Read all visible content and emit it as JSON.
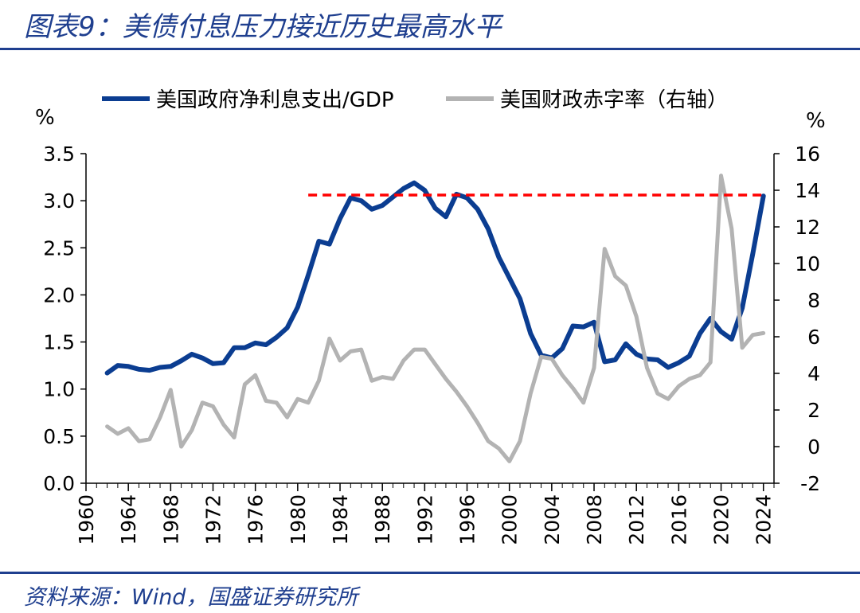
{
  "figure_title": "图表9：美债付息压力接近历史最高水平",
  "source": "资料来源：Wind，国盛证券研究所",
  "colors": {
    "title": "#1f3f8f",
    "interest": "#0b3d91",
    "deficit": "#b3b3b3",
    "reference": "#ff0000"
  },
  "chart_data": {
    "type": "line",
    "title": "",
    "xlabel": "",
    "y_left_unit": "%",
    "y_right_unit": "%",
    "xlim": [
      1960,
      2025
    ],
    "ylim_left": [
      0,
      3.5
    ],
    "ylim_right": [
      -2,
      16
    ],
    "x_ticks": [
      "1960",
      "1964",
      "1968",
      "1972",
      "1976",
      "1980",
      "1984",
      "1988",
      "1992",
      "1996",
      "2000",
      "2004",
      "2008",
      "2012",
      "2016",
      "2020",
      "2024"
    ],
    "y_left_ticks": [
      "0.0",
      "0.5",
      "1.0",
      "1.5",
      "2.0",
      "2.5",
      "3.0",
      "3.5"
    ],
    "y_right_ticks": [
      "-2",
      "0",
      "2",
      "4",
      "6",
      "8",
      "10",
      "12",
      "14",
      "16"
    ],
    "grid": false,
    "legend_position": "top",
    "reference_line": {
      "style": "dashed",
      "axis": "left",
      "y": 3.06,
      "x_start": 1981,
      "x_end": 2024
    },
    "series": [
      {
        "name": "美国政府净利息支出/GDP",
        "axis": "left",
        "x": [
          1962,
          1963,
          1964,
          1965,
          1966,
          1967,
          1968,
          1969,
          1970,
          1971,
          1972,
          1973,
          1974,
          1975,
          1976,
          1977,
          1978,
          1979,
          1980,
          1981,
          1982,
          1983,
          1984,
          1985,
          1986,
          1987,
          1988,
          1989,
          1990,
          1991,
          1992,
          1993,
          1994,
          1995,
          1996,
          1997,
          1998,
          1999,
          2000,
          2001,
          2002,
          2003,
          2004,
          2005,
          2006,
          2007,
          2008,
          2009,
          2010,
          2011,
          2012,
          2013,
          2014,
          2015,
          2016,
          2017,
          2018,
          2019,
          2020,
          2021,
          2022,
          2023,
          2024
        ],
        "values": [
          1.17,
          1.25,
          1.24,
          1.21,
          1.2,
          1.23,
          1.24,
          1.3,
          1.37,
          1.33,
          1.27,
          1.28,
          1.44,
          1.44,
          1.49,
          1.47,
          1.55,
          1.65,
          1.87,
          2.21,
          2.57,
          2.54,
          2.81,
          3.03,
          3.0,
          2.91,
          2.95,
          3.04,
          3.13,
          3.19,
          3.11,
          2.92,
          2.83,
          3.07,
          3.03,
          2.91,
          2.7,
          2.4,
          2.18,
          1.96,
          1.59,
          1.36,
          1.33,
          1.43,
          1.67,
          1.66,
          1.71,
          1.29,
          1.31,
          1.48,
          1.37,
          1.32,
          1.31,
          1.23,
          1.28,
          1.35,
          1.59,
          1.75,
          1.61,
          1.53,
          1.86,
          2.44,
          3.05
        ]
      },
      {
        "name": "美国财政赤字率（右轴）",
        "axis": "right",
        "x": [
          1962,
          1963,
          1964,
          1965,
          1966,
          1967,
          1968,
          1969,
          1970,
          1971,
          1972,
          1973,
          1974,
          1975,
          1976,
          1977,
          1978,
          1979,
          1980,
          1981,
          1982,
          1983,
          1984,
          1985,
          1986,
          1987,
          1988,
          1989,
          1990,
          1991,
          1992,
          1993,
          1994,
          1995,
          1996,
          1997,
          1998,
          1999,
          2000,
          2001,
          2002,
          2003,
          2004,
          2005,
          2006,
          2007,
          2008,
          2009,
          2010,
          2011,
          2012,
          2013,
          2014,
          2015,
          2016,
          2017,
          2018,
          2019,
          2020,
          2021,
          2022,
          2023,
          2024
        ],
        "values": [
          1.1,
          0.7,
          1.0,
          0.3,
          0.4,
          1.6,
          3.1,
          0.0,
          0.9,
          2.4,
          2.2,
          1.2,
          0.5,
          3.4,
          3.9,
          2.5,
          2.4,
          1.6,
          2.6,
          2.4,
          3.6,
          5.9,
          4.7,
          5.2,
          5.3,
          3.6,
          3.8,
          3.7,
          4.7,
          5.3,
          5.3,
          4.5,
          3.7,
          3.0,
          2.2,
          1.3,
          0.3,
          -0.1,
          -0.8,
          0.3,
          2.9,
          4.9,
          4.8,
          3.9,
          3.2,
          2.4,
          4.3,
          10.8,
          9.3,
          8.8,
          7.1,
          4.3,
          2.9,
          2.6,
          3.3,
          3.7,
          3.9,
          4.6,
          14.8,
          11.9,
          5.4,
          6.1,
          6.2
        ]
      }
    ]
  }
}
